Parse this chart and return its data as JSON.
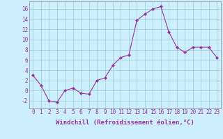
{
  "x": [
    0,
    1,
    2,
    3,
    4,
    5,
    6,
    7,
    8,
    9,
    10,
    11,
    12,
    13,
    14,
    15,
    16,
    17,
    18,
    19,
    20,
    21,
    22,
    23
  ],
  "y": [
    3,
    1,
    -2,
    -2.3,
    0,
    0.5,
    -0.5,
    -0.7,
    2,
    2.5,
    5,
    6.5,
    7,
    13.8,
    15,
    16,
    16.5,
    11.5,
    8.5,
    7.5,
    8.5,
    8.5,
    8.5,
    6.5
  ],
  "line_color": "#993399",
  "marker_color": "#993399",
  "bg_color": "#cceeff",
  "grid_color": "#99cccc",
  "xlabel": "Windchill (Refroidissement éolien,°C)",
  "xlabel_color": "#993399",
  "ylabel_ticks": [
    -2,
    0,
    2,
    4,
    6,
    8,
    10,
    12,
    14,
    16
  ],
  "xlim": [
    -0.5,
    23.5
  ],
  "ylim": [
    -3.5,
    17.5
  ],
  "xticks": [
    0,
    1,
    2,
    3,
    4,
    5,
    6,
    7,
    8,
    9,
    10,
    11,
    12,
    13,
    14,
    15,
    16,
    17,
    18,
    19,
    20,
    21,
    22,
    23
  ],
  "tick_fontsize": 5.5,
  "xlabel_fontsize": 6.5
}
